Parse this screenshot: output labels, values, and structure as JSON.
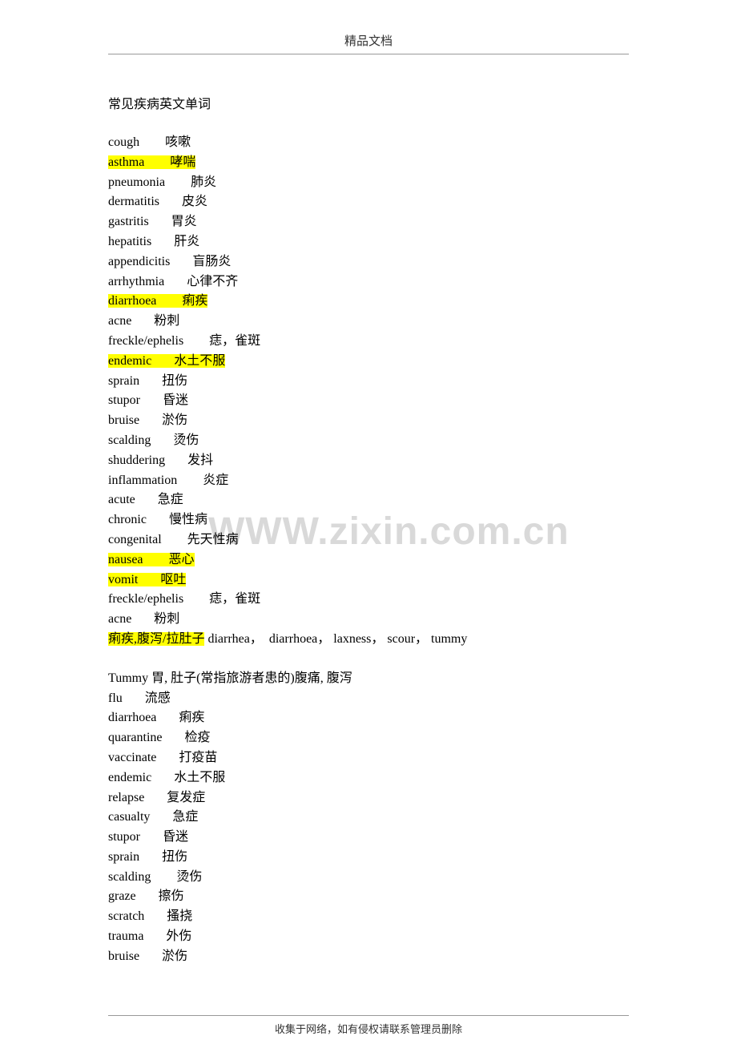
{
  "header_text": "精品文档",
  "title": "常见疾病英文单词",
  "watermark": "WWW.zixin.com.cn",
  "footer_text": "收集于网络，如有侵权请联系管理员删除",
  "colors": {
    "background": "#ffffff",
    "text": "#000000",
    "header_text": "#333333",
    "border": "#999999",
    "highlight": "#ffff00",
    "watermark": "#d9d9d9"
  },
  "lines_block1": [
    {
      "en": "cough",
      "sp": "        ",
      "cn": "咳嗽",
      "hl": false
    },
    {
      "en": "asthma",
      "sp": "        ",
      "cn": "哮喘",
      "hl": true
    },
    {
      "en": "pneumonia",
      "sp": "        ",
      "cn": "肺炎",
      "hl": false
    },
    {
      "en": "dermatitis",
      "sp": "       ",
      "cn": "皮炎",
      "hl": false
    },
    {
      "en": "gastritis",
      "sp": "       ",
      "cn": "胃炎",
      "hl": false
    },
    {
      "en": "hepatitis",
      "sp": "       ",
      "cn": "肝炎",
      "hl": false
    },
    {
      "en": "appendicitis",
      "sp": "       ",
      "cn": "盲肠炎",
      "hl": false
    },
    {
      "en": "arrhythmia",
      "sp": "       ",
      "cn": "心律不齐",
      "hl": false
    },
    {
      "en": "diarrhoea",
      "sp": "        ",
      "cn": "痢疾",
      "hl": true
    },
    {
      "en": "acne",
      "sp": "       ",
      "cn": "粉刺",
      "hl": false
    },
    {
      "en": "freckle/ephelis",
      "sp": "        ",
      "cn": "痣，雀斑",
      "hl": false
    },
    {
      "en": "endemic",
      "sp": "       ",
      "cn": "水土不服",
      "hl": true
    },
    {
      "en": "sprain",
      "sp": "       ",
      "cn": "扭伤",
      "hl": false
    },
    {
      "en": "stupor",
      "sp": "       ",
      "cn": "昏迷",
      "hl": false
    },
    {
      "en": "bruise",
      "sp": "       ",
      "cn": "淤伤",
      "hl": false
    },
    {
      "en": "scalding",
      "sp": "       ",
      "cn": "烫伤",
      "hl": false
    },
    {
      "en": "shuddering",
      "sp": "       ",
      "cn": "发抖",
      "hl": false
    },
    {
      "en": "inflammation",
      "sp": "        ",
      "cn": "炎症",
      "hl": false
    },
    {
      "en": "acute",
      "sp": "       ",
      "cn": "急症",
      "hl": false
    },
    {
      "en": "chronic",
      "sp": "       ",
      "cn": "慢性病",
      "hl": false
    },
    {
      "en": "congenital",
      "sp": "        ",
      "cn": "先天性病",
      "hl": false
    },
    {
      "en": "nausea",
      "sp": "        ",
      "cn": "恶心",
      "hl": true
    },
    {
      "en": "vomit",
      "sp": "       ",
      "cn": "呕吐",
      "hl": true
    },
    {
      "en": "freckle/ephelis",
      "sp": "        ",
      "cn": "痣，雀斑",
      "hl": false
    },
    {
      "en": "acne",
      "sp": "       ",
      "cn": "粉刺",
      "hl": false
    }
  ],
  "mixed_line": {
    "hl_text": "痢疾,腹泻/拉肚子",
    "rest": " diarrhea，  diarrhoea， laxness， scour， tummy"
  },
  "tummy_line": "Tummy 胃, 肚子(常指旅游者患的)腹痛, 腹泻",
  "lines_block2": [
    {
      "en": "flu",
      "sp": "       ",
      "cn": "流感",
      "hl": false
    },
    {
      "en": "diarrhoea",
      "sp": "       ",
      "cn": "痢疾",
      "hl": false
    },
    {
      "en": "quarantine",
      "sp": "       ",
      "cn": "检疫",
      "hl": false
    },
    {
      "en": "vaccinate",
      "sp": "       ",
      "cn": "打疫苗",
      "hl": false
    },
    {
      "en": "endemic",
      "sp": "       ",
      "cn": "水土不服",
      "hl": false
    },
    {
      "en": "relapse",
      "sp": "       ",
      "cn": "复发症",
      "hl": false
    },
    {
      "en": "casualty",
      "sp": "       ",
      "cn": "急症",
      "hl": false
    },
    {
      "en": "stupor",
      "sp": "       ",
      "cn": "昏迷",
      "hl": false
    },
    {
      "en": "sprain",
      "sp": "       ",
      "cn": "扭伤",
      "hl": false
    },
    {
      "en": "scalding",
      "sp": "        ",
      "cn": "烫伤",
      "hl": false
    },
    {
      "en": "graze",
      "sp": "       ",
      "cn": "擦伤",
      "hl": false
    },
    {
      "en": "scratch",
      "sp": "       ",
      "cn": "搔挠",
      "hl": false
    },
    {
      "en": "trauma",
      "sp": "       ",
      "cn": "外伤",
      "hl": false
    },
    {
      "en": "bruise",
      "sp": "       ",
      "cn": "淤伤",
      "hl": false
    }
  ]
}
